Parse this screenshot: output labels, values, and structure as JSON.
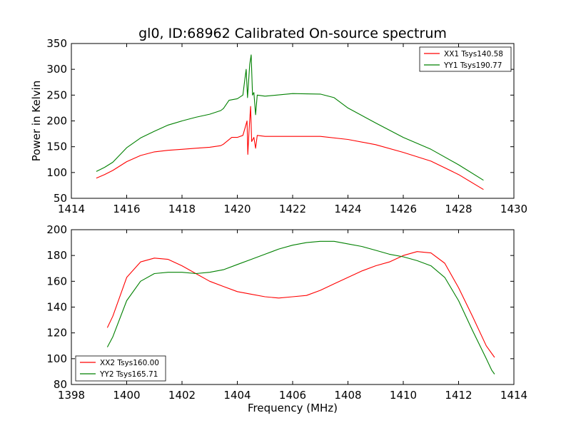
{
  "title": "gl0, ID:68962 Calibrated On-source spectrum",
  "chart_data": [
    {
      "type": "line",
      "title": "gl0, ID:68962 Calibrated On-source spectrum",
      "xlabel": "",
      "ylabel": "Power in Kelvin",
      "xlim": [
        1414,
        1430
      ],
      "ylim": [
        50,
        350
      ],
      "xticks": [
        1414,
        1416,
        1418,
        1420,
        1422,
        1424,
        1426,
        1428,
        1430
      ],
      "yticks": [
        50,
        100,
        150,
        200,
        250,
        300,
        350
      ],
      "grid": false,
      "legend_position": "top-right",
      "series": [
        {
          "name": "XX1 Tsys140.58",
          "color": "#ff0000",
          "points": [
            [
              1414.9,
              89
            ],
            [
              1415.2,
              96
            ],
            [
              1415.5,
              104
            ],
            [
              1416.0,
              121
            ],
            [
              1416.5,
              133
            ],
            [
              1417.0,
              140
            ],
            [
              1417.5,
              143
            ],
            [
              1418.0,
              145
            ],
            [
              1418.5,
              147
            ],
            [
              1419.0,
              149
            ],
            [
              1419.4,
              152
            ],
            [
              1419.5,
              155
            ],
            [
              1419.8,
              168
            ],
            [
              1420.0,
              168
            ],
            [
              1420.2,
              172
            ],
            [
              1420.3,
              190
            ],
            [
              1420.35,
              200
            ],
            [
              1420.38,
              135
            ],
            [
              1420.42,
              178
            ],
            [
              1420.48,
              228
            ],
            [
              1420.52,
              160
            ],
            [
              1420.6,
              168
            ],
            [
              1420.66,
              147
            ],
            [
              1420.72,
              172
            ],
            [
              1421.0,
              170
            ],
            [
              1422.0,
              170
            ],
            [
              1423.0,
              170
            ],
            [
              1424.0,
              164
            ],
            [
              1425.0,
              154
            ],
            [
              1426.0,
              139
            ],
            [
              1427.0,
              122
            ],
            [
              1428.0,
              96
            ],
            [
              1428.9,
              67
            ]
          ]
        },
        {
          "name": "YY1 Tsys190.77",
          "color": "#008000",
          "points": [
            [
              1414.9,
              102
            ],
            [
              1415.2,
              110
            ],
            [
              1415.5,
              120
            ],
            [
              1416.0,
              148
            ],
            [
              1416.5,
              167
            ],
            [
              1417.0,
              180
            ],
            [
              1417.5,
              192
            ],
            [
              1418.0,
              200
            ],
            [
              1418.5,
              207
            ],
            [
              1419.0,
              213
            ],
            [
              1419.4,
              220
            ],
            [
              1419.5,
              224
            ],
            [
              1419.7,
              240
            ],
            [
              1420.0,
              243
            ],
            [
              1420.2,
              250
            ],
            [
              1420.27,
              280
            ],
            [
              1420.32,
              300
            ],
            [
              1420.37,
              245
            ],
            [
              1420.45,
              310
            ],
            [
              1420.5,
              328
            ],
            [
              1420.55,
              250
            ],
            [
              1420.6,
              255
            ],
            [
              1420.66,
              212
            ],
            [
              1420.72,
              250
            ],
            [
              1421.0,
              248
            ],
            [
              1422.0,
              253
            ],
            [
              1423.0,
              252
            ],
            [
              1423.5,
              245
            ],
            [
              1424.0,
              225
            ],
            [
              1425.0,
              196
            ],
            [
              1426.0,
              168
            ],
            [
              1427.0,
              145
            ],
            [
              1428.0,
              115
            ],
            [
              1428.9,
              85
            ]
          ]
        }
      ]
    },
    {
      "type": "line",
      "title": "",
      "xlabel": "Frequency (MHz)",
      "ylabel": "",
      "xlim": [
        1398,
        1414
      ],
      "ylim": [
        80,
        200
      ],
      "xticks": [
        1398,
        1400,
        1402,
        1404,
        1406,
        1408,
        1410,
        1412,
        1414
      ],
      "yticks": [
        80,
        100,
        120,
        140,
        160,
        180,
        200
      ],
      "grid": false,
      "legend_position": "bottom-left",
      "series": [
        {
          "name": "XX2 Tsys160.00",
          "color": "#ff0000",
          "points": [
            [
              1399.3,
              124
            ],
            [
              1399.5,
              133
            ],
            [
              1400.0,
              163
            ],
            [
              1400.5,
              175
            ],
            [
              1401.0,
              178
            ],
            [
              1401.5,
              177
            ],
            [
              1402.0,
              172
            ],
            [
              1402.5,
              166
            ],
            [
              1403.0,
              160
            ],
            [
              1403.5,
              156
            ],
            [
              1404.0,
              152
            ],
            [
              1404.5,
              150
            ],
            [
              1405.0,
              148
            ],
            [
              1405.5,
              147
            ],
            [
              1406.0,
              148
            ],
            [
              1406.5,
              149
            ],
            [
              1407.0,
              153
            ],
            [
              1407.5,
              158
            ],
            [
              1408.0,
              163
            ],
            [
              1408.5,
              168
            ],
            [
              1409.0,
              172
            ],
            [
              1409.5,
              175
            ],
            [
              1410.0,
              180
            ],
            [
              1410.5,
              183
            ],
            [
              1411.0,
              182
            ],
            [
              1411.5,
              174
            ],
            [
              1412.0,
              155
            ],
            [
              1412.5,
              133
            ],
            [
              1413.0,
              110
            ],
            [
              1413.3,
              101
            ]
          ]
        },
        {
          "name": "YY2 Tsys165.71",
          "color": "#008000",
          "points": [
            [
              1399.3,
              109
            ],
            [
              1399.5,
              117
            ],
            [
              1400.0,
              145
            ],
            [
              1400.5,
              160
            ],
            [
              1401.0,
              166
            ],
            [
              1401.5,
              167
            ],
            [
              1402.0,
              167
            ],
            [
              1402.5,
              166
            ],
            [
              1403.0,
              167
            ],
            [
              1403.5,
              169
            ],
            [
              1404.0,
              173
            ],
            [
              1404.5,
              177
            ],
            [
              1405.0,
              181
            ],
            [
              1405.5,
              185
            ],
            [
              1406.0,
              188
            ],
            [
              1406.5,
              190
            ],
            [
              1407.0,
              191
            ],
            [
              1407.5,
              191
            ],
            [
              1408.0,
              189
            ],
            [
              1408.5,
              187
            ],
            [
              1409.0,
              184
            ],
            [
              1409.5,
              181
            ],
            [
              1410.0,
              179
            ],
            [
              1410.5,
              176
            ],
            [
              1411.0,
              172
            ],
            [
              1411.5,
              163
            ],
            [
              1412.0,
              145
            ],
            [
              1412.5,
              122
            ],
            [
              1413.0,
              100
            ],
            [
              1413.2,
              91
            ],
            [
              1413.3,
              88
            ]
          ]
        }
      ]
    }
  ]
}
